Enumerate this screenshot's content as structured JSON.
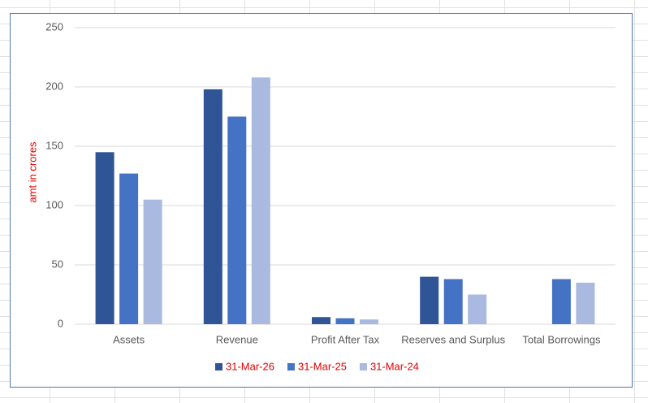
{
  "chart_data": {
    "type": "bar",
    "y_label": "amt in crores",
    "categories": [
      "Assets",
      "Revenue",
      "Profit After Tax",
      "Reserves and Surplus",
      "Total Borrowings"
    ],
    "series": [
      {
        "name": "31-Mar-26",
        "color": "#2f5597",
        "values": [
          145,
          198,
          6,
          40,
          null
        ]
      },
      {
        "name": "31-Mar-25",
        "color": "#4472c4",
        "values": [
          127,
          175,
          5,
          38,
          38
        ]
      },
      {
        "name": "31-Mar-24",
        "color": "#a9b9df",
        "values": [
          105,
          208,
          4,
          25,
          35
        ]
      }
    ],
    "ylim": [
      0,
      250
    ],
    "yticks": [
      0,
      50,
      100,
      150,
      200,
      250
    ],
    "grid": true,
    "legend": "bottom"
  }
}
